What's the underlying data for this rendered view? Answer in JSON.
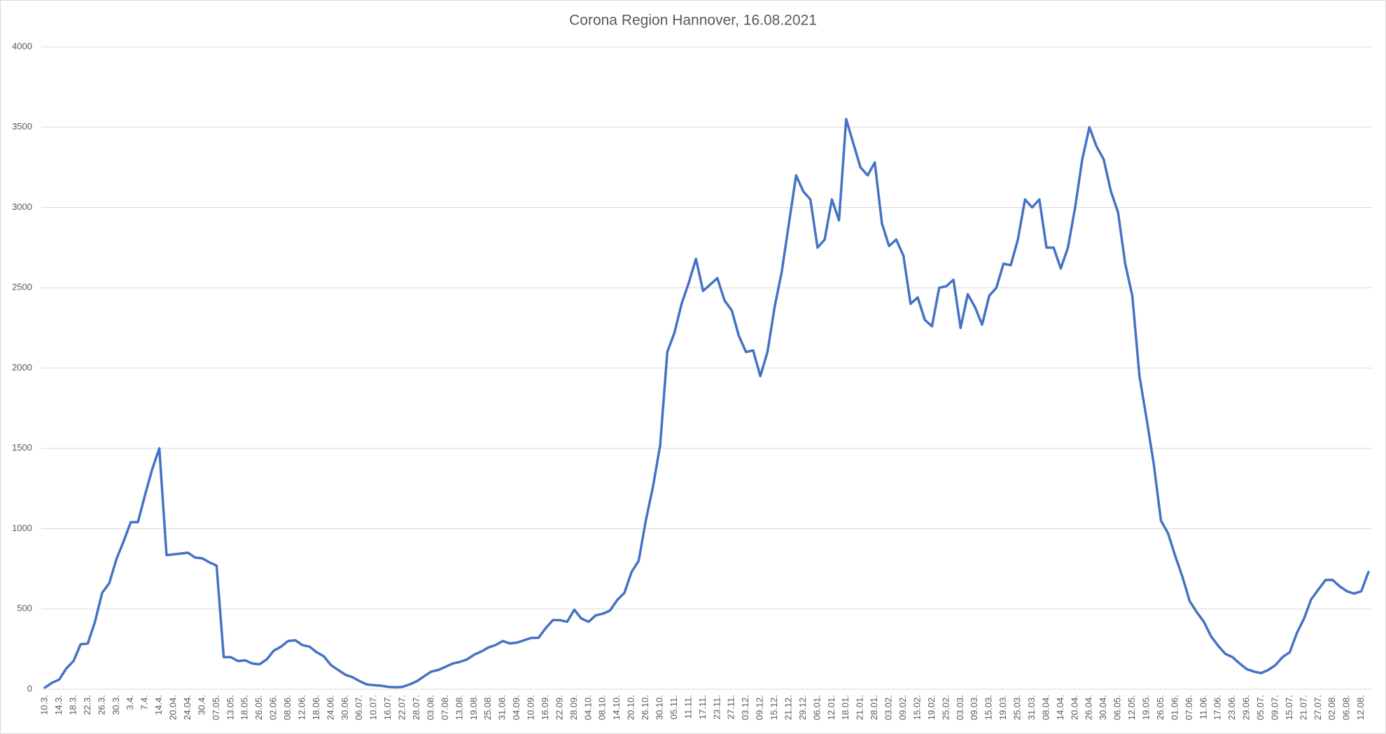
{
  "chart_data": {
    "type": "line",
    "title": "Corona Region Hannover, 16.08.2021",
    "categories": [
      "10.3.",
      null,
      "14.3.",
      null,
      "18.3.",
      null,
      "22.3.",
      null,
      "26.3.",
      null,
      "30.3.",
      null,
      "3.4.",
      null,
      "7.4.",
      null,
      "14.4.",
      null,
      "20.04.",
      null,
      "24.04.",
      null,
      "30.4.",
      null,
      "07.05.",
      null,
      "13.05.",
      null,
      "18.05.",
      null,
      "26.05.",
      null,
      "02.06.",
      null,
      "08.06.",
      null,
      "12.06.",
      null,
      "18.06.",
      null,
      "24.06.",
      null,
      "30.06.",
      null,
      "06.07.",
      null,
      "10.07.",
      null,
      "16.07.",
      null,
      "22.07.",
      null,
      "28.07.",
      null,
      "03.08.",
      null,
      "07.08.",
      null,
      "13.08.",
      null,
      "19.08.",
      null,
      "25.08.",
      null,
      "31.08.",
      null,
      "04.09.",
      null,
      "10.09.",
      null,
      "16.09.",
      null,
      "22.09.",
      null,
      "28.09.",
      null,
      "04.10.",
      null,
      "08.10.",
      null,
      "14.10.",
      null,
      "20.10.",
      null,
      "26.10.",
      null,
      "30.10.",
      null,
      "05.11.",
      null,
      "11.11.",
      null,
      "17.11.",
      null,
      "23.11.",
      null,
      "27.11.",
      null,
      "03.12.",
      null,
      "09.12.",
      null,
      "15.12.",
      null,
      "21.12.",
      null,
      "29.12.",
      null,
      "06.01.",
      null,
      "12.01.",
      null,
      "18.01.",
      null,
      "21.01.",
      null,
      "28.01.",
      null,
      "03.02.",
      null,
      "09.02.",
      null,
      "15.02.",
      null,
      "19.02.",
      null,
      "25.02.",
      null,
      "03.03.",
      null,
      "09.03.",
      null,
      "15.03.",
      null,
      "19.03.",
      null,
      "25.03.",
      null,
      "31.03.",
      null,
      "08.04.",
      null,
      "14.04.",
      null,
      "20.04.",
      null,
      "26.04.",
      null,
      "30.04.",
      null,
      "06.05.",
      null,
      "12.05.",
      null,
      "19.05.",
      null,
      "26.05.",
      null,
      "01.06.",
      null,
      "07.06.",
      null,
      "11.06.",
      null,
      "17.06.",
      null,
      "23.06.",
      null,
      "29.06.",
      null,
      "05.07.",
      null,
      "09.07.",
      null,
      "15.07.",
      null,
      "21.07.",
      null,
      "27.07.",
      null,
      "02.08.",
      null,
      "06.08.",
      null,
      "12.08.",
      null
    ],
    "values": [
      10,
      40,
      60,
      130,
      175,
      280,
      285,
      420,
      600,
      660,
      810,
      920,
      1040,
      1040,
      1210,
      1370,
      1500,
      835,
      840,
      845,
      850,
      820,
      815,
      790,
      770,
      200,
      200,
      175,
      180,
      160,
      155,
      185,
      240,
      265,
      300,
      305,
      275,
      265,
      230,
      205,
      150,
      120,
      90,
      75,
      50,
      30,
      25,
      22,
      15,
      12,
      15,
      30,
      50,
      80,
      110,
      120,
      140,
      160,
      170,
      185,
      215,
      235,
      260,
      275,
      300,
      285,
      290,
      305,
      320,
      320,
      380,
      430,
      430,
      420,
      495,
      440,
      420,
      460,
      470,
      490,
      555,
      600,
      730,
      800,
      1050,
      1260,
      1520,
      2100,
      2220,
      2400,
      2530,
      2680,
      2480,
      2520,
      2560,
      2420,
      2360,
      2200,
      2100,
      2110,
      1950,
      2100,
      2380,
      2600,
      2900,
      3200,
      3100,
      3050,
      2750,
      2800,
      3050,
      2920,
      3550,
      3400,
      3250,
      3200,
      3280,
      2900,
      2760,
      2800,
      2700,
      2400,
      2440,
      2300,
      2260,
      2500,
      2510,
      2550,
      2250,
      2460,
      2380,
      2270,
      2450,
      2500,
      2650,
      2640,
      2800,
      3050,
      3000,
      3050,
      2750,
      2750,
      2620,
      2750,
      3000,
      3300,
      3500,
      3380,
      3300,
      3100,
      2970,
      2650,
      2450,
      1950,
      1680,
      1400,
      1050,
      970,
      830,
      700,
      550,
      480,
      420,
      330,
      270,
      220,
      200,
      160,
      125,
      110,
      100,
      120,
      150,
      200,
      230,
      350,
      440,
      560,
      620,
      680,
      680,
      640,
      610,
      595,
      610,
      730
    ],
    "color": "#4472c4",
    "ylim": [
      0,
      4000
    ],
    "yticks": [
      0,
      500,
      1000,
      1500,
      2000,
      2500,
      3000,
      3500,
      4000
    ],
    "grid": true
  }
}
